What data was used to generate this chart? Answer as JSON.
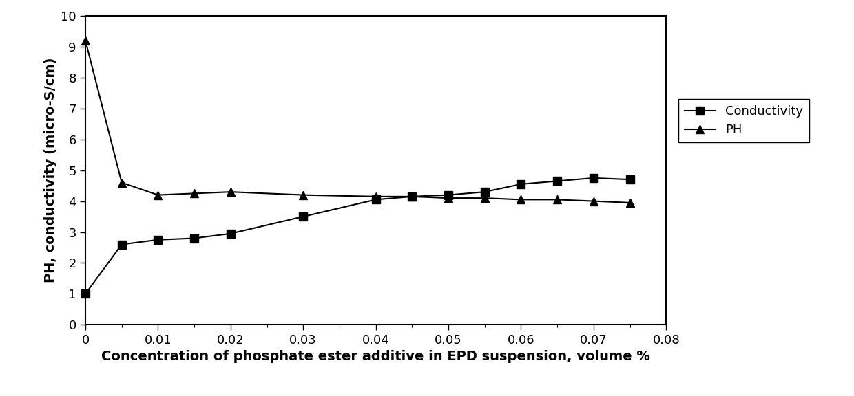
{
  "conductivity_x": [
    0,
    0.005,
    0.01,
    0.015,
    0.02,
    0.03,
    0.04,
    0.045,
    0.05,
    0.055,
    0.06,
    0.065,
    0.07,
    0.075
  ],
  "conductivity_y": [
    1.0,
    2.6,
    2.75,
    2.8,
    2.95,
    3.5,
    4.05,
    4.15,
    4.2,
    4.3,
    4.55,
    4.65,
    4.75,
    4.7
  ],
  "ph_x": [
    0,
    0.005,
    0.01,
    0.015,
    0.02,
    0.03,
    0.04,
    0.045,
    0.05,
    0.055,
    0.06,
    0.065,
    0.07,
    0.075
  ],
  "ph_y": [
    9.2,
    4.6,
    4.2,
    4.25,
    4.3,
    4.2,
    4.15,
    4.15,
    4.1,
    4.1,
    4.05,
    4.05,
    4.0,
    3.95
  ],
  "xlabel": "Concentration of phosphate ester additive in EPD suspension, volume %",
  "ylabel": "PH, conductivity (micro-S/cm)",
  "xlim": [
    0,
    0.08
  ],
  "ylim": [
    0,
    10
  ],
  "yticks": [
    0,
    1,
    2,
    3,
    4,
    5,
    6,
    7,
    8,
    9,
    10
  ],
  "xticks": [
    0,
    0.01,
    0.02,
    0.03,
    0.04,
    0.05,
    0.06,
    0.07,
    0.08
  ],
  "legend_conductivity": "Conductivity",
  "legend_ph": "PH",
  "line_color": "#000000",
  "marker_square": "s",
  "marker_triangle": "^",
  "markersize": 9,
  "linewidth": 1.5,
  "bg_color": "#ffffff",
  "label_fontsize": 14,
  "tick_fontsize": 13
}
